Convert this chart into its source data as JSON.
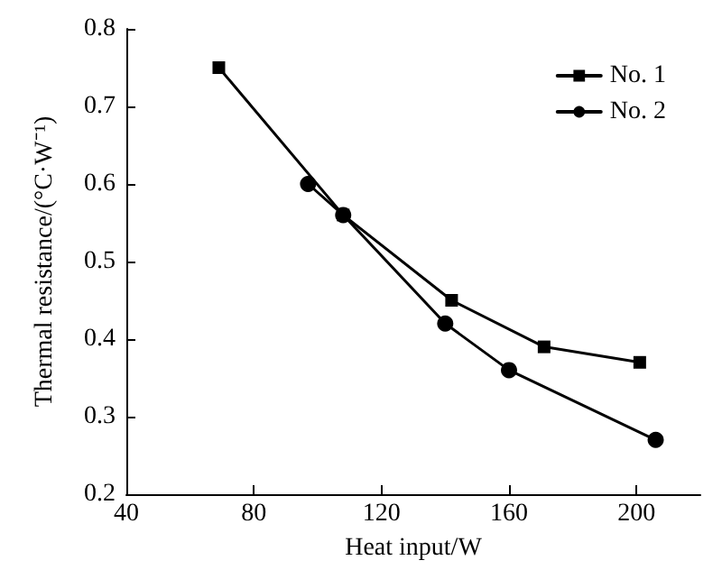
{
  "chart_data": {
    "type": "line",
    "xlabel": "Heat input/W",
    "ylabel": "Thermal resistance/(°C·W⁻¹)",
    "xlim": [
      40,
      220
    ],
    "xticks": [
      40,
      80,
      120,
      160,
      200
    ],
    "ylim": [
      0.2,
      0.8
    ],
    "yticks": [
      0.2,
      0.3,
      0.4,
      0.5,
      0.6,
      0.7,
      0.8
    ],
    "grid": false,
    "legend": "top right",
    "line_style": "solid",
    "series": [
      {
        "name": "No. 1",
        "color": "#000000",
        "marker": "square",
        "x": [
          69,
          108,
          142,
          171,
          201
        ],
        "values": [
          0.75,
          0.56,
          0.45,
          0.39,
          0.37
        ]
      },
      {
        "name": "No. 2",
        "color": "#000000",
        "marker": "circle",
        "x": [
          97,
          108,
          140,
          160,
          206
        ],
        "values": [
          0.6,
          0.56,
          0.42,
          0.36,
          0.27
        ]
      }
    ]
  }
}
